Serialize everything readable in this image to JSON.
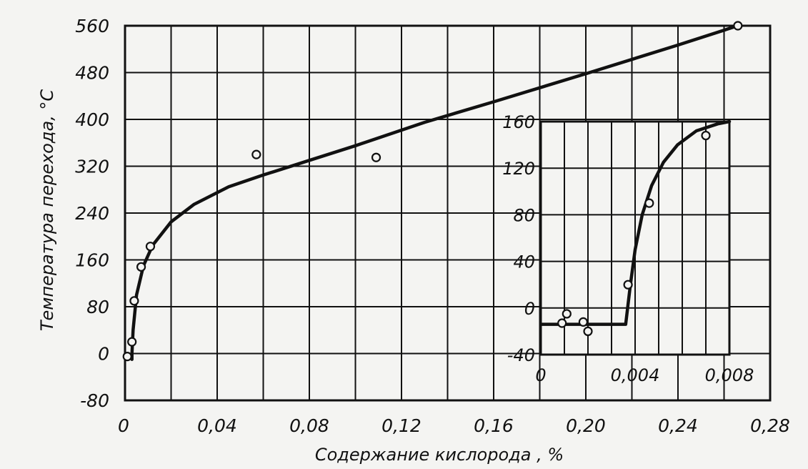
{
  "chart_data": [
    {
      "type": "scatter",
      "title": "",
      "xlabel": "Содержание кислорода , %",
      "ylabel": "Температура перехода, °С",
      "xlim": [
        0,
        0.28
      ],
      "ylim": [
        -80,
        560
      ],
      "x_ticks": [
        0,
        0.04,
        0.08,
        0.12,
        0.16,
        0.2,
        0.24,
        0.28
      ],
      "x_tick_labels": [
        "0",
        "0,04",
        "0,08",
        "0,12",
        "0,16",
        "0,20",
        "0,24",
        "0,28"
      ],
      "y_ticks": [
        -80,
        0,
        80,
        160,
        240,
        320,
        400,
        480,
        560
      ],
      "y_tick_labels": [
        "-80",
        "0",
        "80",
        "160",
        "240",
        "320",
        "400",
        "480",
        "560"
      ],
      "grid": true,
      "series": [
        {
          "kind": "points",
          "x": [
            0.001,
            0.003,
            0.004,
            0.007,
            0.011,
            0.057,
            0.109,
            0.266
          ],
          "y": [
            -5,
            20,
            90,
            148,
            183,
            340,
            335,
            560
          ]
        },
        {
          "kind": "fitted-curve",
          "x": [
            0.003,
            0.003,
            0.0035,
            0.005,
            0.008,
            0.012,
            0.02,
            0.03,
            0.045,
            0.06,
            0.08,
            0.1,
            0.13,
            0.16,
            0.2,
            0.24,
            0.266
          ],
          "y": [
            -10,
            0,
            40,
            100,
            150,
            185,
            225,
            255,
            285,
            305,
            330,
            355,
            395,
            430,
            478,
            527,
            560
          ]
        }
      ]
    },
    {
      "type": "scatter",
      "title": "",
      "inset": true,
      "xlim": [
        0,
        0.008
      ],
      "ylim": [
        -40,
        160
      ],
      "x_ticks": [
        0,
        0.004,
        0.008
      ],
      "x_tick_labels": [
        "0",
        "0,004",
        "0,008"
      ],
      "y_ticks": [
        -40,
        0,
        40,
        80,
        120,
        160
      ],
      "y_tick_labels": [
        "-40",
        "0",
        "40",
        "80",
        "120",
        "160"
      ],
      "grid": true,
      "series": [
        {
          "kind": "points",
          "x": [
            0.0009,
            0.0011,
            0.0018,
            0.002,
            0.0037,
            0.0046,
            0.007
          ],
          "y": [
            -13,
            -5,
            -12,
            -20,
            20,
            90,
            148
          ]
        },
        {
          "kind": "fitted-curve",
          "x": [
            0,
            0.0036,
            0.0036,
            0.0038,
            0.004,
            0.0043,
            0.0047,
            0.0052,
            0.0058,
            0.0066,
            0.0075,
            0.008
          ],
          "y": [
            -14,
            -14,
            -14,
            20,
            50,
            80,
            105,
            125,
            140,
            152,
            158,
            160
          ]
        }
      ]
    }
  ]
}
